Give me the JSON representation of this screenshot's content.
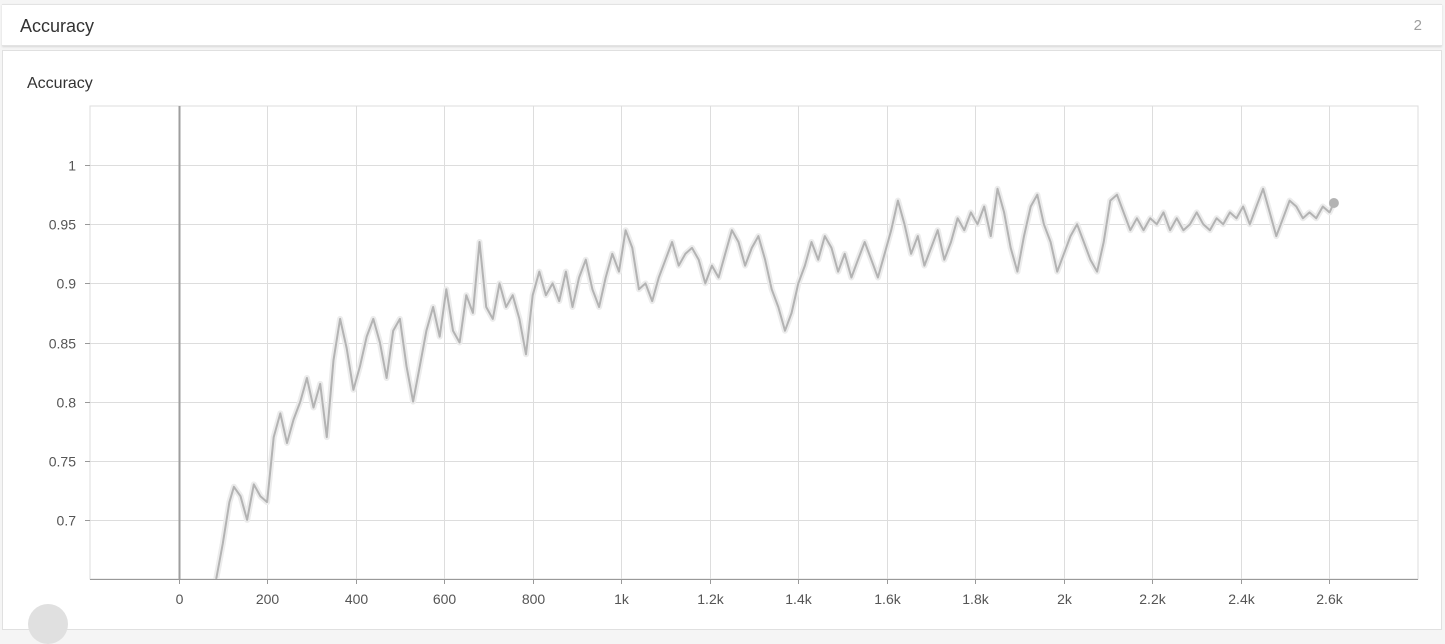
{
  "section": {
    "title": "Accuracy",
    "count": "2"
  },
  "card": {
    "title": "Accuracy"
  },
  "colors": {
    "line": "#b3b3b3",
    "raw_line": "#ececec",
    "grid": "#dddddd",
    "axis": "#999999",
    "zero_line": "#9e9e9e"
  },
  "chart_data": {
    "type": "line",
    "title": "Accuracy",
    "xlabel": "",
    "ylabel": "",
    "xlim": [
      -200,
      2800
    ],
    "ylim": [
      0.65,
      1.05
    ],
    "x_ticks": [
      0,
      200,
      400,
      600,
      800,
      1000,
      1200,
      1400,
      1600,
      1800,
      2000,
      2200,
      2400,
      2600
    ],
    "x_tick_labels": [
      "0",
      "200",
      "400",
      "600",
      "800",
      "1k",
      "1.2k",
      "1.4k",
      "1.6k",
      "1.8k",
      "2k",
      "2.2k",
      "2.4k",
      "2.6k"
    ],
    "y_ticks": [
      0.7,
      0.75,
      0.8,
      0.85,
      0.9,
      0.95,
      1
    ],
    "y_tick_labels": [
      "0.7",
      "0.75",
      "0.8",
      "0.85",
      "0.9",
      "0.95",
      "1"
    ],
    "grid": true,
    "series": [
      {
        "role": "smoothed",
        "points": [
          [
            85,
            0.65
          ],
          [
            100,
            0.68
          ],
          [
            115,
            0.715
          ],
          [
            125,
            0.728
          ],
          [
            140,
            0.72
          ],
          [
            155,
            0.7
          ],
          [
            170,
            0.73
          ],
          [
            185,
            0.72
          ],
          [
            200,
            0.715
          ],
          [
            215,
            0.77
          ],
          [
            230,
            0.79
          ],
          [
            245,
            0.765
          ],
          [
            260,
            0.785
          ],
          [
            275,
            0.8
          ],
          [
            290,
            0.82
          ],
          [
            305,
            0.795
          ],
          [
            320,
            0.815
          ],
          [
            335,
            0.77
          ],
          [
            350,
            0.835
          ],
          [
            365,
            0.87
          ],
          [
            380,
            0.845
          ],
          [
            395,
            0.81
          ],
          [
            410,
            0.83
          ],
          [
            425,
            0.855
          ],
          [
            440,
            0.87
          ],
          [
            455,
            0.85
          ],
          [
            470,
            0.82
          ],
          [
            485,
            0.86
          ],
          [
            500,
            0.87
          ],
          [
            515,
            0.83
          ],
          [
            530,
            0.8
          ],
          [
            545,
            0.83
          ],
          [
            560,
            0.86
          ],
          [
            575,
            0.88
          ],
          [
            590,
            0.855
          ],
          [
            605,
            0.895
          ],
          [
            620,
            0.86
          ],
          [
            635,
            0.85
          ],
          [
            650,
            0.89
          ],
          [
            665,
            0.875
          ],
          [
            680,
            0.935
          ],
          [
            695,
            0.88
          ],
          [
            710,
            0.87
          ],
          [
            725,
            0.9
          ],
          [
            740,
            0.88
          ],
          [
            755,
            0.89
          ],
          [
            770,
            0.87
          ],
          [
            785,
            0.84
          ],
          [
            800,
            0.89
          ],
          [
            815,
            0.91
          ],
          [
            830,
            0.89
          ],
          [
            845,
            0.9
          ],
          [
            860,
            0.885
          ],
          [
            875,
            0.91
          ],
          [
            890,
            0.88
          ],
          [
            905,
            0.905
          ],
          [
            920,
            0.92
          ],
          [
            935,
            0.895
          ],
          [
            950,
            0.88
          ],
          [
            965,
            0.905
          ],
          [
            980,
            0.925
          ],
          [
            995,
            0.91
          ],
          [
            1010,
            0.945
          ],
          [
            1025,
            0.93
          ],
          [
            1040,
            0.895
          ],
          [
            1055,
            0.9
          ],
          [
            1070,
            0.885
          ],
          [
            1085,
            0.905
          ],
          [
            1100,
            0.92
          ],
          [
            1115,
            0.935
          ],
          [
            1130,
            0.915
          ],
          [
            1145,
            0.925
          ],
          [
            1160,
            0.93
          ],
          [
            1175,
            0.92
          ],
          [
            1190,
            0.9
          ],
          [
            1205,
            0.915
          ],
          [
            1220,
            0.905
          ],
          [
            1235,
            0.925
          ],
          [
            1250,
            0.945
          ],
          [
            1265,
            0.935
          ],
          [
            1280,
            0.915
          ],
          [
            1295,
            0.93
          ],
          [
            1310,
            0.94
          ],
          [
            1325,
            0.92
          ],
          [
            1340,
            0.895
          ],
          [
            1355,
            0.88
          ],
          [
            1370,
            0.86
          ],
          [
            1385,
            0.875
          ],
          [
            1400,
            0.9
          ],
          [
            1415,
            0.915
          ],
          [
            1430,
            0.935
          ],
          [
            1445,
            0.92
          ],
          [
            1460,
            0.94
          ],
          [
            1475,
            0.93
          ],
          [
            1490,
            0.91
          ],
          [
            1505,
            0.925
          ],
          [
            1520,
            0.905
          ],
          [
            1535,
            0.92
          ],
          [
            1550,
            0.935
          ],
          [
            1565,
            0.92
          ],
          [
            1580,
            0.905
          ],
          [
            1595,
            0.925
          ],
          [
            1610,
            0.945
          ],
          [
            1625,
            0.97
          ],
          [
            1640,
            0.95
          ],
          [
            1655,
            0.925
          ],
          [
            1670,
            0.94
          ],
          [
            1685,
            0.915
          ],
          [
            1700,
            0.93
          ],
          [
            1715,
            0.945
          ],
          [
            1730,
            0.92
          ],
          [
            1745,
            0.935
          ],
          [
            1760,
            0.955
          ],
          [
            1775,
            0.945
          ],
          [
            1790,
            0.96
          ],
          [
            1805,
            0.95
          ],
          [
            1820,
            0.965
          ],
          [
            1835,
            0.94
          ],
          [
            1850,
            0.98
          ],
          [
            1865,
            0.96
          ],
          [
            1880,
            0.93
          ],
          [
            1895,
            0.91
          ],
          [
            1910,
            0.94
          ],
          [
            1925,
            0.965
          ],
          [
            1940,
            0.975
          ],
          [
            1955,
            0.95
          ],
          [
            1970,
            0.935
          ],
          [
            1985,
            0.91
          ],
          [
            2000,
            0.925
          ],
          [
            2015,
            0.94
          ],
          [
            2030,
            0.95
          ],
          [
            2045,
            0.935
          ],
          [
            2060,
            0.92
          ],
          [
            2075,
            0.91
          ],
          [
            2090,
            0.935
          ],
          [
            2105,
            0.97
          ],
          [
            2120,
            0.975
          ],
          [
            2135,
            0.96
          ],
          [
            2150,
            0.945
          ],
          [
            2165,
            0.955
          ],
          [
            2180,
            0.945
          ],
          [
            2195,
            0.955
          ],
          [
            2210,
            0.95
          ],
          [
            2225,
            0.96
          ],
          [
            2240,
            0.945
          ],
          [
            2255,
            0.955
          ],
          [
            2270,
            0.945
          ],
          [
            2285,
            0.95
          ],
          [
            2300,
            0.96
          ],
          [
            2315,
            0.95
          ],
          [
            2330,
            0.945
          ],
          [
            2345,
            0.955
          ],
          [
            2360,
            0.95
          ],
          [
            2375,
            0.96
          ],
          [
            2390,
            0.955
          ],
          [
            2405,
            0.965
          ],
          [
            2420,
            0.95
          ],
          [
            2435,
            0.965
          ],
          [
            2450,
            0.98
          ],
          [
            2465,
            0.96
          ],
          [
            2480,
            0.94
          ],
          [
            2495,
            0.955
          ],
          [
            2510,
            0.97
          ],
          [
            2525,
            0.965
          ],
          [
            2540,
            0.955
          ],
          [
            2555,
            0.96
          ],
          [
            2570,
            0.955
          ],
          [
            2585,
            0.965
          ],
          [
            2600,
            0.96
          ],
          [
            2610,
            0.968
          ]
        ]
      }
    ],
    "last_point": [
      2610,
      0.968
    ]
  }
}
